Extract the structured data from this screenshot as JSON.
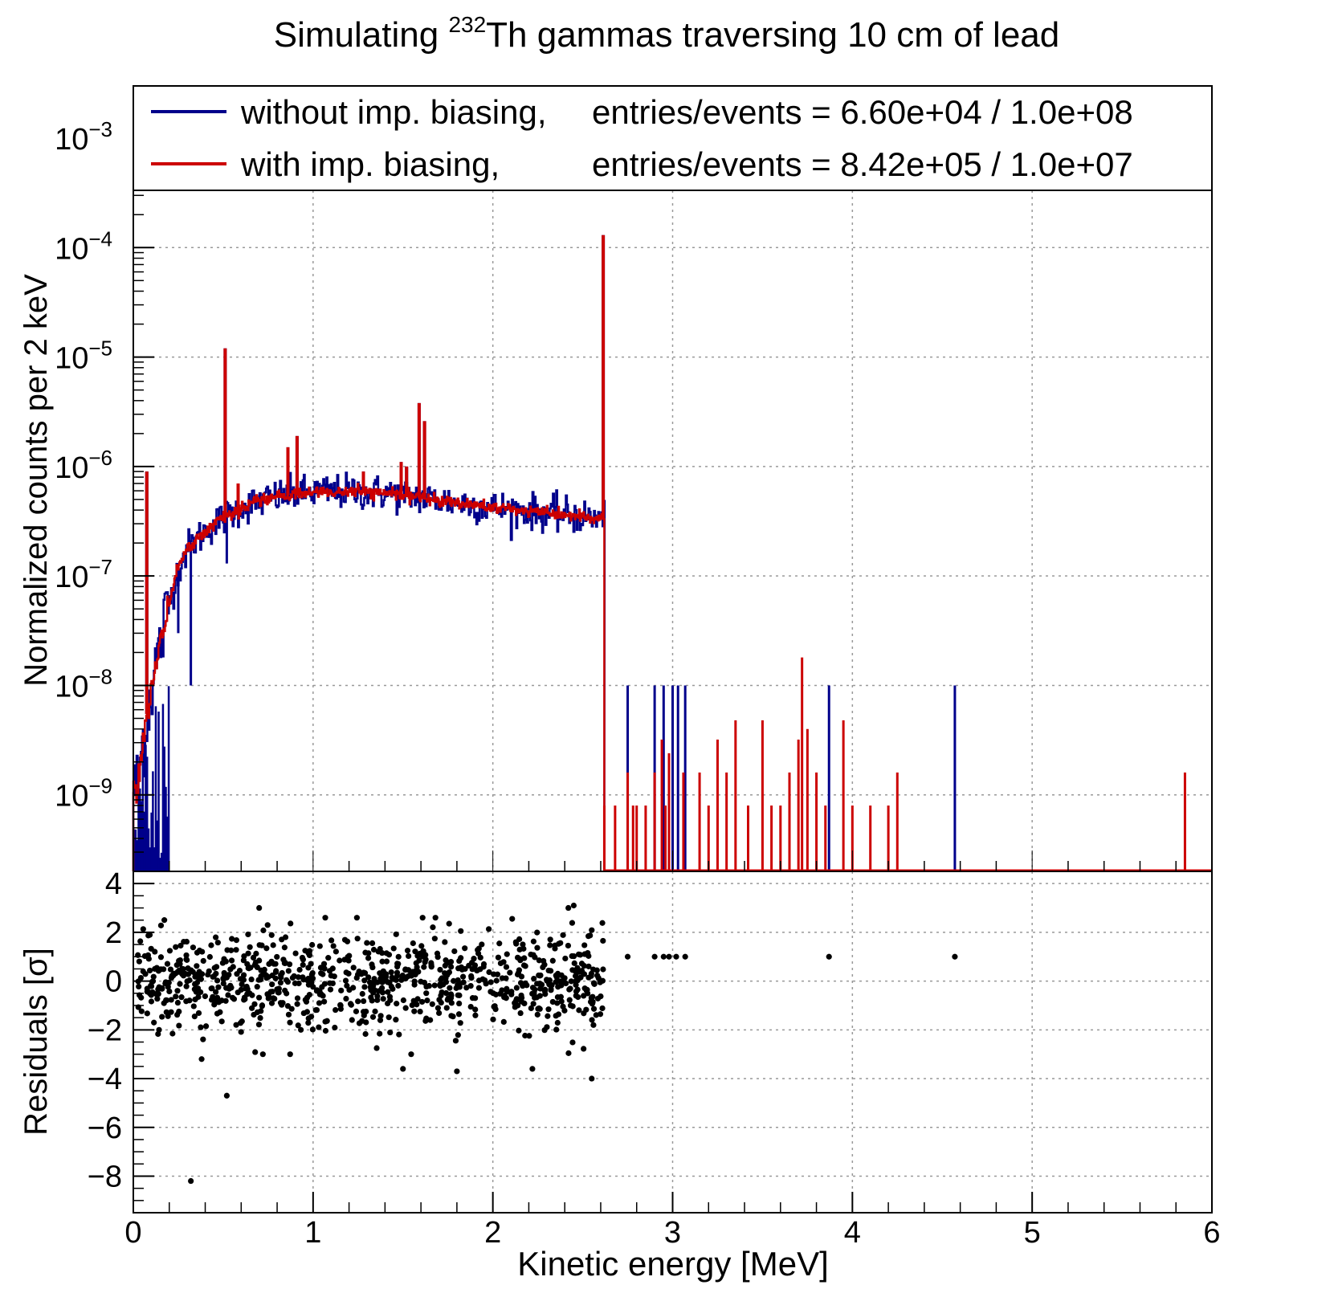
{
  "chart_data": {
    "type": "histogram-with-residuals",
    "title": {
      "prefix": "Simulating ",
      "superscript": "232",
      "suffix": "Th gammas traversing 10 cm of lead"
    },
    "xlabel": "Kinetic energy [MeV]",
    "xlim": [
      0,
      6
    ],
    "x_ticks": [
      "0",
      "1",
      "2",
      "3",
      "4",
      "5",
      "6"
    ],
    "top_panel": {
      "ylabel": "Normalized counts per 2 keV",
      "yscale": "log",
      "ylim": [
        2e-10,
        0.003
      ],
      "y_ticks": [
        {
          "value": 1e-09,
          "base": "10",
          "exp": "−9"
        },
        {
          "value": 1e-08,
          "base": "10",
          "exp": "−8"
        },
        {
          "value": 1e-07,
          "base": "10",
          "exp": "−7"
        },
        {
          "value": 1e-06,
          "base": "10",
          "exp": "−6"
        },
        {
          "value": 1e-05,
          "base": "10",
          "exp": "−5"
        },
        {
          "value": 0.0001,
          "base": "10",
          "exp": "−4"
        },
        {
          "value": 0.001,
          "base": "10",
          "exp": "−3"
        }
      ],
      "grid": true,
      "bin_width_MeV": 0.002,
      "legend": {
        "position": "top",
        "entries": [
          {
            "name": "without imp. biasing,",
            "stats": "entries/events = 6.60e+04 / 1.0e+08",
            "color": "#00008b"
          },
          {
            "name": "with imp. biasing,",
            "stats": "entries/events = 8.42e+05 / 1.0e+07",
            "color": "#cc0000"
          }
        ]
      },
      "series": [
        {
          "name": "without imp. biasing",
          "color": "#00008b",
          "continuum_points": [
            [
              0.02,
              1.2e-09
            ],
            [
              0.05,
              3e-09
            ],
            [
              0.1,
              1e-08
            ],
            [
              0.15,
              2.5e-08
            ],
            [
              0.2,
              6e-08
            ],
            [
              0.25,
              1.2e-07
            ],
            [
              0.3,
              1.8e-07
            ],
            [
              0.4,
              2.6e-07
            ],
            [
              0.5,
              3.4e-07
            ],
            [
              0.6,
              4.2e-07
            ],
            [
              0.7,
              4.8e-07
            ],
            [
              0.8,
              5.3e-07
            ],
            [
              0.9,
              5.6e-07
            ],
            [
              1.0,
              5.8e-07
            ],
            [
              1.2,
              5.9e-07
            ],
            [
              1.4,
              5.7e-07
            ],
            [
              1.6,
              5.2e-07
            ],
            [
              1.8,
              4.7e-07
            ],
            [
              2.0,
              4.2e-07
            ],
            [
              2.2,
              3.9e-07
            ],
            [
              2.4,
              3.6e-07
            ],
            [
              2.6,
              3.3e-07
            ]
          ],
          "lines": [
            [
              0.075,
              9e-07
            ],
            [
              0.511,
              1.2e-05
            ],
            [
              0.583,
              7e-07
            ],
            [
              0.86,
              1.5e-06
            ],
            [
              0.911,
              1.9e-06
            ],
            [
              1.28,
              9e-07
            ],
            [
              1.49,
              1.1e-06
            ],
            [
              1.52,
              1e-06
            ],
            [
              1.59,
              3.8e-06
            ],
            [
              1.62,
              2.6e-06
            ],
            [
              2.614,
              0.00013
            ]
          ],
          "dips": [
            [
              0.32,
              1e-08
            ],
            [
              0.52,
              1.3e-07
            ],
            [
              0.25,
              3e-08
            ]
          ],
          "tail_bins": [
            [
              2.75,
              1e-08
            ],
            [
              2.9,
              1e-08
            ],
            [
              2.95,
              1e-08
            ],
            [
              3.0,
              1e-08
            ],
            [
              3.03,
              1e-08
            ],
            [
              3.07,
              1e-08
            ],
            [
              3.87,
              1e-08
            ],
            [
              4.57,
              1e-08
            ]
          ]
        },
        {
          "name": "with imp. biasing",
          "color": "#cc0000",
          "continuum_points": [
            [
              0.02,
              1.2e-09
            ],
            [
              0.05,
              3e-09
            ],
            [
              0.1,
              1e-08
            ],
            [
              0.15,
              2.5e-08
            ],
            [
              0.2,
              6e-08
            ],
            [
              0.25,
              1.2e-07
            ],
            [
              0.3,
              1.8e-07
            ],
            [
              0.4,
              2.6e-07
            ],
            [
              0.5,
              3.4e-07
            ],
            [
              0.6,
              4.2e-07
            ],
            [
              0.7,
              4.8e-07
            ],
            [
              0.8,
              5.3e-07
            ],
            [
              0.9,
              5.6e-07
            ],
            [
              1.0,
              5.8e-07
            ],
            [
              1.2,
              5.9e-07
            ],
            [
              1.4,
              5.7e-07
            ],
            [
              1.6,
              5.2e-07
            ],
            [
              1.8,
              4.7e-07
            ],
            [
              2.0,
              4.2e-07
            ],
            [
              2.2,
              3.9e-07
            ],
            [
              2.4,
              3.6e-07
            ],
            [
              2.6,
              3.3e-07
            ]
          ],
          "lines": [
            [
              0.075,
              9e-07
            ],
            [
              0.511,
              1.2e-05
            ],
            [
              0.583,
              7e-07
            ],
            [
              0.86,
              1.5e-06
            ],
            [
              0.911,
              1.9e-06
            ],
            [
              1.28,
              9e-07
            ],
            [
              1.49,
              1.1e-06
            ],
            [
              1.52,
              1e-06
            ],
            [
              1.59,
              3.8e-06
            ],
            [
              1.62,
              2.6e-06
            ],
            [
              2.614,
              0.00013
            ]
          ],
          "tail_bins": [
            [
              2.62,
              8e-10
            ],
            [
              2.68,
              8e-10
            ],
            [
              2.75,
              1.6e-09
            ],
            [
              2.78,
              8e-10
            ],
            [
              2.8,
              8e-10
            ],
            [
              2.85,
              8e-10
            ],
            [
              2.9,
              1.6e-09
            ],
            [
              2.94,
              3.2e-09
            ],
            [
              2.96,
              8e-10
            ],
            [
              2.98,
              2.4e-09
            ],
            [
              3.06,
              1.6e-09
            ],
            [
              3.15,
              1.6e-09
            ],
            [
              3.2,
              8e-10
            ],
            [
              3.25,
              3.2e-09
            ],
            [
              3.3,
              1.6e-09
            ],
            [
              3.35,
              4.8e-09
            ],
            [
              3.42,
              8e-10
            ],
            [
              3.5,
              4.8e-09
            ],
            [
              3.55,
              8e-10
            ],
            [
              3.6,
              8e-10
            ],
            [
              3.65,
              1.6e-09
            ],
            [
              3.7,
              3.2e-09
            ],
            [
              3.72,
              1.8e-08
            ],
            [
              3.75,
              4e-09
            ],
            [
              3.8,
              1.6e-09
            ],
            [
              3.85,
              8e-10
            ],
            [
              3.95,
              4.8e-09
            ],
            [
              4.0,
              8e-10
            ],
            [
              4.1,
              8e-10
            ],
            [
              4.2,
              8e-10
            ],
            [
              4.25,
              1.6e-09
            ],
            [
              5.85,
              1.6e-09
            ]
          ]
        }
      ]
    },
    "bottom_panel": {
      "ylabel": "Residuals [σ]",
      "ylim": [
        -9.5,
        4.5
      ],
      "y_ticks": [
        "4",
        "2",
        "0",
        "−2",
        "−4",
        "−6",
        "−8"
      ],
      "y_tick_values": [
        4,
        2,
        0,
        -2,
        -4,
        -6,
        -8
      ],
      "grid": true,
      "marker": "dot",
      "noted_outliers": [
        [
          0.32,
          -8.2
        ],
        [
          0.52,
          -4.7
        ],
        [
          0.38,
          -3.2
        ],
        [
          2.55,
          -4.0
        ],
        [
          2.22,
          -3.6
        ],
        [
          1.8,
          -3.7
        ],
        [
          1.5,
          -3.6
        ],
        [
          0.7,
          3.0
        ],
        [
          2.45,
          3.1
        ],
        [
          2.42,
          3.0
        ]
      ],
      "tail_points": [
        [
          2.75,
          1.0
        ],
        [
          2.9,
          1.0
        ],
        [
          2.95,
          1.0
        ],
        [
          2.98,
          1.0
        ],
        [
          3.02,
          1.0
        ],
        [
          3.07,
          1.0
        ],
        [
          3.87,
          1.0
        ],
        [
          4.57,
          1.0
        ]
      ],
      "core_band": {
        "x_range": [
          0.02,
          2.62
        ],
        "sigma_spread": 1.0
      }
    }
  }
}
